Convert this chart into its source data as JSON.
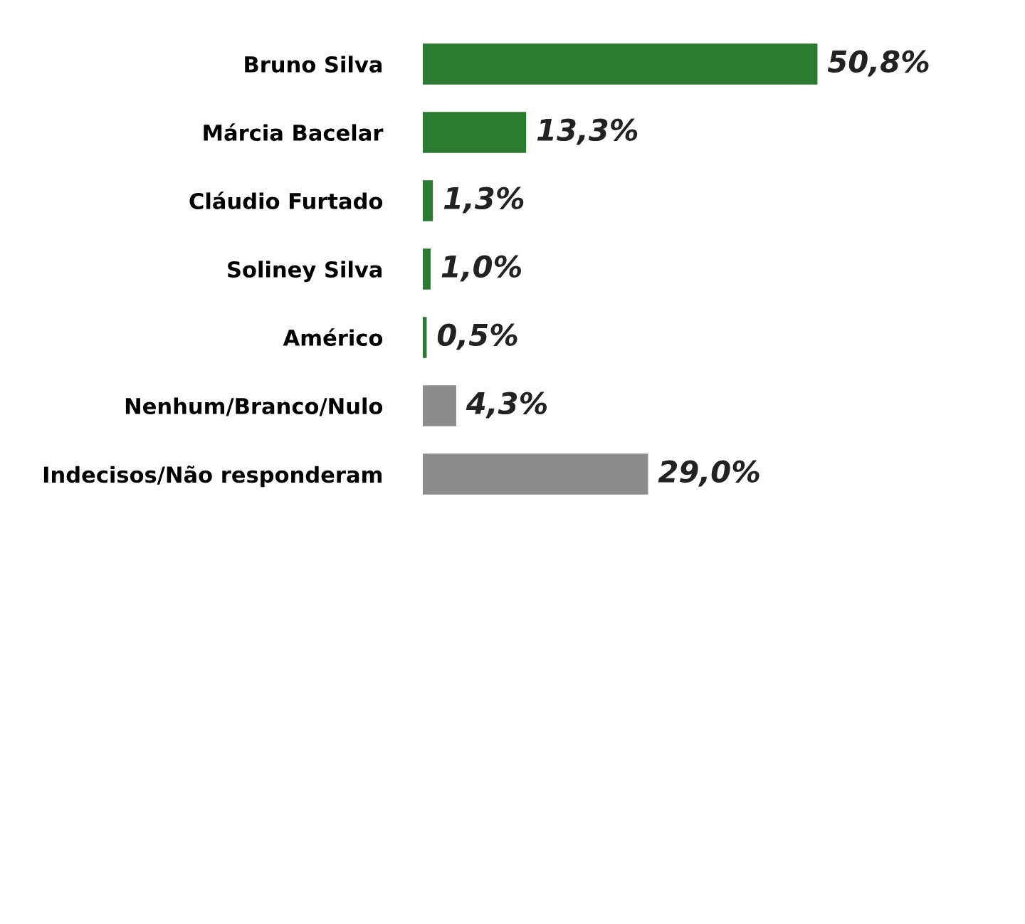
{
  "chart_data": {
    "type": "bar",
    "orientation": "horizontal",
    "categories": [
      "Bruno Silva",
      "Márcia Bacelar",
      "Cláudio Furtado",
      "Soliney Silva",
      "Américo",
      "Nenhum/Branco/Nulo",
      "Indecisos/Não responderam"
    ],
    "values": [
      50.8,
      13.3,
      1.3,
      1.0,
      0.5,
      4.3,
      29.0
    ],
    "colors": [
      "#2a7a32",
      "#2a7a32",
      "#2a7a32",
      "#2a7a32",
      "#2a7a32",
      "#8c8c8c",
      "#8c8c8c"
    ],
    "value_labels": [
      "50,8%",
      "13,3%",
      "1,3%",
      "1,0%",
      "0,5%",
      "4,3%",
      "29,0%"
    ],
    "grid": false,
    "legend": false
  }
}
